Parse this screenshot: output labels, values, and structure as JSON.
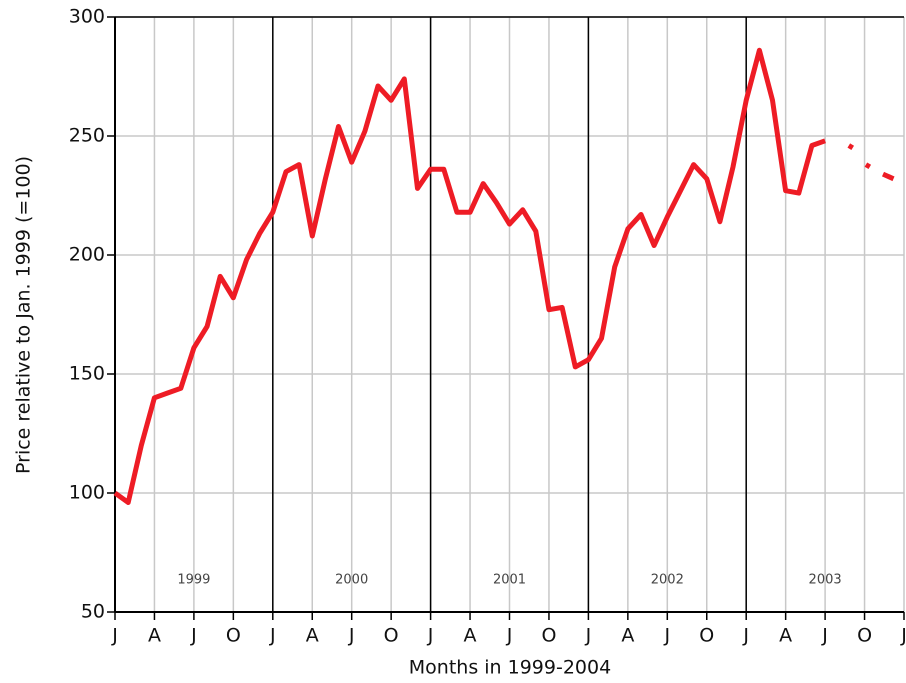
{
  "chart_data": {
    "type": "line",
    "xlabel": "Months in 1999-2004",
    "ylabel": "Price relative to Jan. 1999 (=100)",
    "xlim": [
      0,
      60
    ],
    "ylim": [
      50,
      300
    ],
    "yticks": [
      50,
      100,
      150,
      200,
      250,
      300
    ],
    "xticks": [
      {
        "value": 0,
        "label": "J"
      },
      {
        "value": 3,
        "label": "A"
      },
      {
        "value": 6,
        "label": "J"
      },
      {
        "value": 9,
        "label": "O"
      },
      {
        "value": 12,
        "label": "J"
      },
      {
        "value": 15,
        "label": "A"
      },
      {
        "value": 18,
        "label": "J"
      },
      {
        "value": 21,
        "label": "O"
      },
      {
        "value": 24,
        "label": "J"
      },
      {
        "value": 27,
        "label": "A"
      },
      {
        "value": 30,
        "label": "J"
      },
      {
        "value": 33,
        "label": "O"
      },
      {
        "value": 36,
        "label": "J"
      },
      {
        "value": 39,
        "label": "A"
      },
      {
        "value": 42,
        "label": "J"
      },
      {
        "value": 45,
        "label": "O"
      },
      {
        "value": 48,
        "label": "J"
      },
      {
        "value": 51,
        "label": "A"
      },
      {
        "value": 54,
        "label": "J"
      },
      {
        "value": 57,
        "label": "O"
      },
      {
        "value": 60,
        "label": "J"
      }
    ],
    "year_lines": [
      12,
      24,
      36,
      48
    ],
    "year_labels": [
      "1999",
      "2000",
      "2001",
      "2002",
      "2003"
    ],
    "grid": true,
    "color": "#ee1c25",
    "x": [
      0,
      1,
      2,
      3,
      4,
      5,
      6,
      7,
      8,
      9,
      10,
      11,
      12,
      13,
      14,
      15,
      16,
      17,
      18,
      19,
      20,
      21,
      22,
      23,
      24,
      25,
      26,
      27,
      28,
      29,
      30,
      31,
      32,
      33,
      34,
      35,
      36,
      37,
      38,
      39,
      40,
      41,
      42,
      43,
      44,
      45,
      46,
      47,
      48,
      49,
      50,
      51,
      52,
      53,
      54,
      54.5,
      55.8,
      56.1,
      56.5,
      57.1,
      57.4,
      57.8,
      58.4,
      59.2
    ],
    "values": [
      100,
      96,
      120,
      140,
      142,
      144,
      161,
      170,
      191,
      182,
      198,
      209,
      218,
      235,
      238,
      208,
      232,
      254,
      239,
      252,
      271,
      265,
      274,
      228,
      236,
      236,
      218,
      218,
      230,
      222,
      213,
      219,
      210,
      177,
      178,
      153,
      156,
      165,
      195,
      211,
      217,
      204,
      216,
      227,
      238,
      232,
      214,
      237,
      265,
      286,
      265,
      227,
      226,
      246,
      248,
      null,
      246,
      245,
      null,
      238,
      237,
      null,
      234,
      232
    ]
  }
}
